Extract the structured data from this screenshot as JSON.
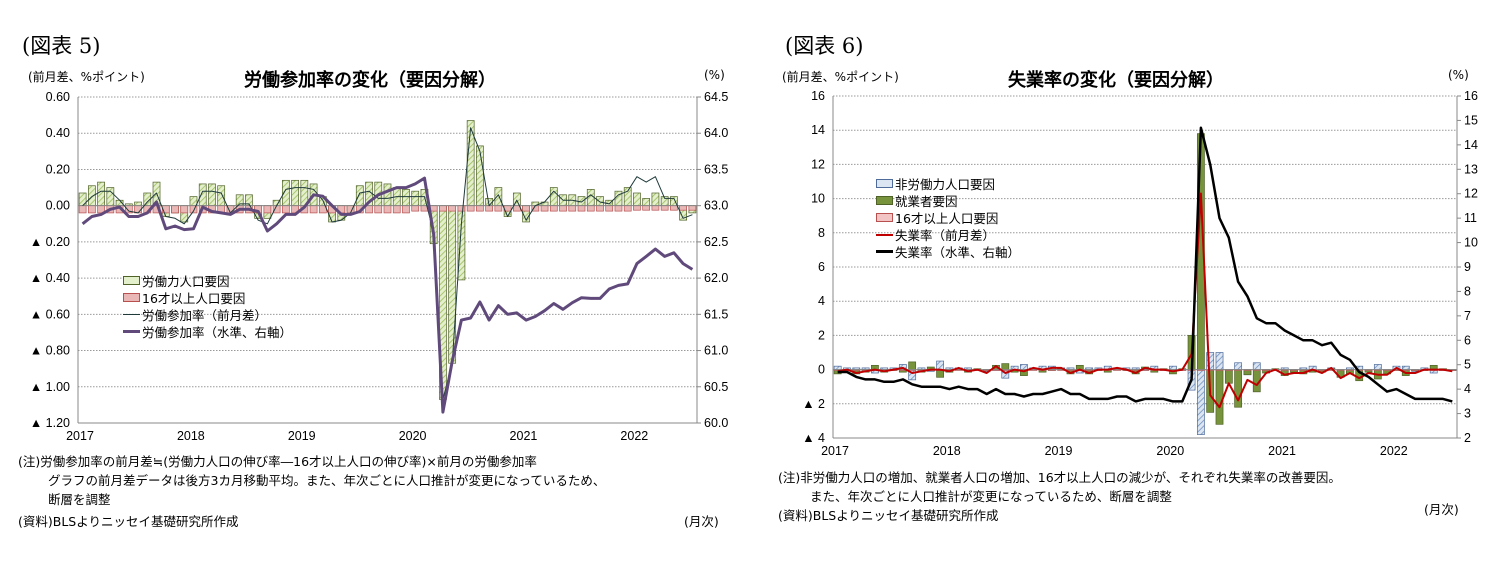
{
  "chart_data": [
    {
      "type": "bar",
      "figure_label": "(図表 5)",
      "title": "労働参加率の変化（要因分解）",
      "ylabel": "(前月差、%ポイント)",
      "ylabel_right": "(%)",
      "xlabel": "(月次)",
      "ylim": [
        -1.2,
        0.6
      ],
      "ylim_right": [
        60.0,
        64.5
      ],
      "yticks": [
        0.6,
        0.4,
        0.2,
        0,
        -0.2,
        -0.4,
        -0.6,
        -0.8,
        -1.0,
        -1.2
      ],
      "ytick_labels": [
        "0.60",
        "0.40",
        "0.20",
        "0.00",
        "▲ 0.20",
        "▲ 0.40",
        "▲ 0.60",
        "▲ 0.80",
        "▲ 1.00",
        "▲ 1.20"
      ],
      "yticks_right": [
        64.5,
        64.0,
        63.5,
        63.0,
        62.5,
        62.0,
        61.5,
        61.0,
        60.5,
        60.0
      ],
      "ytick_labels_right": [
        "64.5",
        "64.0",
        "63.5",
        "63.0",
        "62.5",
        "62.0",
        "61.5",
        "61.0",
        "60.5",
        "60.0"
      ],
      "x_start": "2017-01",
      "x_tick_labels": [
        "2017",
        "2018",
        "2019",
        "2020",
        "2021",
        "2022"
      ],
      "legend_placement": "center-left",
      "series": [
        {
          "name": "労働力人口要因",
          "kind": "bar",
          "values": [
            0.07,
            0.11,
            0.13,
            0.1,
            0.03,
            0.01,
            0.02,
            0.07,
            0.13,
            -0.06,
            -0.04,
            -0.09,
            0.05,
            0.12,
            0.12,
            0.11,
            0.0,
            0.06,
            0.06,
            -0.07,
            -0.07,
            0.03,
            0.14,
            0.14,
            0.14,
            0.12,
            0.05,
            -0.09,
            -0.08,
            -0.03,
            0.11,
            0.13,
            0.13,
            0.12,
            0.1,
            0.09,
            0.08,
            0.09,
            -0.21,
            -1.07,
            -0.87,
            -0.41,
            0.47,
            0.33,
            0.04,
            0.1,
            -0.06,
            0.07,
            -0.09,
            0.02,
            0.02,
            0.1,
            0.06,
            0.06,
            0.05,
            0.09,
            0.05,
            0.03,
            0.08,
            0.1,
            0.07,
            0.04,
            0.07,
            0.05,
            0.05,
            -0.08,
            -0.04
          ]
        },
        {
          "name": "16才以上人口要因",
          "kind": "bar",
          "values": [
            -0.04,
            -0.04,
            -0.04,
            -0.04,
            -0.04,
            -0.04,
            -0.04,
            -0.04,
            -0.04,
            -0.04,
            -0.04,
            -0.04,
            -0.04,
            -0.04,
            -0.04,
            -0.04,
            -0.04,
            -0.04,
            -0.04,
            -0.04,
            -0.04,
            -0.04,
            -0.04,
            -0.04,
            -0.04,
            -0.04,
            -0.04,
            -0.04,
            -0.04,
            -0.04,
            -0.04,
            -0.04,
            -0.04,
            -0.04,
            -0.04,
            -0.04,
            -0.03,
            -0.03,
            -0.03,
            -0.03,
            -0.03,
            -0.03,
            -0.03,
            -0.03,
            -0.03,
            -0.03,
            -0.03,
            -0.03,
            -0.03,
            -0.03,
            -0.03,
            -0.03,
            -0.03,
            -0.03,
            -0.03,
            -0.03,
            -0.03,
            -0.03,
            -0.03,
            -0.03,
            -0.025,
            -0.025,
            -0.025,
            -0.025,
            -0.025,
            -0.025,
            -0.025
          ]
        },
        {
          "name": "労働参加率（前月差）",
          "kind": "line",
          "values": [
            0.0,
            0.05,
            0.08,
            0.08,
            0.03,
            -0.03,
            -0.04,
            0.02,
            0.07,
            -0.06,
            -0.07,
            -0.1,
            -0.03,
            0.08,
            0.08,
            0.07,
            -0.04,
            0.01,
            0.01,
            -0.08,
            -0.1,
            0.0,
            0.09,
            0.1,
            0.1,
            0.09,
            0.03,
            -0.09,
            -0.08,
            -0.04,
            0.07,
            0.08,
            0.04,
            0.04,
            0.05,
            0.05,
            0.05,
            0.05,
            -0.15,
            -1.07,
            -0.87,
            -0.1,
            0.43,
            0.3,
            0.0,
            0.06,
            -0.06,
            0.03,
            -0.08,
            0.0,
            0.02,
            0.08,
            0.03,
            0.03,
            0.02,
            0.06,
            0.02,
            0.01,
            0.06,
            0.08,
            0.16,
            0.13,
            0.16,
            0.04,
            0.04,
            -0.07,
            -0.05
          ]
        },
        {
          "name": "労働参加率（水準、右軸）",
          "kind": "line",
          "axis": "right",
          "values": [
            62.75,
            62.85,
            62.88,
            62.95,
            62.98,
            62.85,
            62.85,
            62.9,
            63.05,
            62.68,
            62.72,
            62.67,
            62.68,
            62.98,
            62.92,
            62.9,
            62.88,
            62.95,
            62.95,
            62.92,
            62.65,
            62.75,
            62.88,
            62.88,
            62.98,
            63.15,
            63.13,
            63.0,
            62.88,
            62.88,
            62.92,
            63.05,
            63.15,
            63.2,
            63.25,
            63.25,
            63.3,
            63.38,
            62.6,
            60.15,
            60.85,
            61.42,
            61.45,
            61.67,
            61.42,
            61.62,
            61.5,
            61.52,
            61.42,
            61.47,
            61.55,
            61.65,
            61.57,
            61.66,
            61.73,
            61.72,
            61.72,
            61.85,
            61.9,
            61.92,
            62.2,
            62.3,
            62.4,
            62.3,
            62.35,
            62.2,
            62.12
          ]
        }
      ],
      "notes": [
        "(注)労働参加率の前月差≒(労働力人口の伸び率―16才以上人口の伸び率)×前月の労働参加率",
        "グラフの前月差データは後方3カ月移動平均。また、年次ごとに人口推計が変更になっているため、",
        "断層を調整",
        "(資料)BLSよりニッセイ基礎研究所作成"
      ]
    },
    {
      "type": "bar",
      "figure_label": "(図表 6)",
      "title": "失業率の変化（要因分解）",
      "ylabel": "(前月差、%ポイント)",
      "ylabel_right": "(%)",
      "xlabel": "(月次)",
      "ylim": [
        -4,
        16
      ],
      "ylim_right": [
        2,
        16
      ],
      "yticks": [
        16,
        14,
        12,
        10,
        8,
        6,
        4,
        2,
        0,
        -2,
        -4
      ],
      "ytick_labels": [
        "16",
        "14",
        "12",
        "10",
        "8",
        "6",
        "4",
        "2",
        "0",
        "▲ 2",
        "▲ 4"
      ],
      "yticks_right": [
        16,
        15,
        14,
        13,
        12,
        11,
        10,
        9,
        8,
        7,
        6,
        5,
        4,
        3,
        2
      ],
      "ytick_labels_right": [
        "16",
        "15",
        "14",
        "13",
        "12",
        "11",
        "10",
        "9",
        "8",
        "7",
        "6",
        "5",
        "4",
        "3",
        "2"
      ],
      "x_start": "2017-01",
      "x_tick_labels": [
        "2017",
        "2018",
        "2019",
        "2020",
        "2021",
        "2022"
      ],
      "legend_placement": "upper-left",
      "series": [
        {
          "name": "非労働力人口要因",
          "kind": "bar",
          "values": [
            0.2,
            0.1,
            0.1,
            0.1,
            -0.2,
            0.1,
            0.1,
            0.3,
            -0.6,
            0.1,
            -0.1,
            0.5,
            0.1,
            0.1,
            0.1,
            0.0,
            -0.1,
            0.0,
            -0.5,
            0.2,
            0.3,
            0.1,
            0.2,
            0.2,
            0.1,
            0.1,
            -0.2,
            0.1,
            0.1,
            0.2,
            0.1,
            0.1,
            0.1,
            0.0,
            0.2,
            0.0,
            0.2,
            0.0,
            -1.2,
            -3.8,
            1.0,
            1.0,
            0.0,
            0.4,
            -0.3,
            0.4,
            0.0,
            0.0,
            0.1,
            0.0,
            0.1,
            0.2,
            0.0,
            0.1,
            0.0,
            0.1,
            0.2,
            0.0,
            0.3,
            0.0,
            0.2,
            0.2,
            -0.1,
            0.1,
            -0.2,
            0.0,
            0.0
          ]
        },
        {
          "name": "就業者要因",
          "kind": "bar",
          "values": [
            -0.25,
            -0.05,
            -0.25,
            -0.15,
            0.25,
            -0.15,
            -0.05,
            -0.15,
            0.45,
            -0.15,
            0.15,
            -0.45,
            -0.15,
            0.05,
            -0.15,
            0.05,
            -0.05,
            0.25,
            0.35,
            -0.15,
            -0.35,
            0.05,
            -0.15,
            -0.05,
            0.05,
            -0.25,
            0.25,
            -0.25,
            -0.05,
            -0.15,
            0.05,
            -0.05,
            -0.25,
            0.15,
            -0.15,
            0.05,
            -0.25,
            0.05,
            2.0,
            13.8,
            -2.5,
            -3.2,
            -0.8,
            -2.2,
            -0.3,
            -1.3,
            -0.2,
            0.05,
            -0.35,
            -0.15,
            -0.25,
            -0.15,
            -0.15,
            0.05,
            -0.45,
            -0.25,
            -0.65,
            -0.15,
            -0.55,
            -0.25,
            -0.05,
            -0.35,
            -0.05,
            -0.05,
            0.25,
            0.05,
            -0.05
          ]
        },
        {
          "name": "16才以上人口要因",
          "kind": "bar",
          "values": [
            -0.05,
            -0.05,
            -0.05,
            -0.05,
            -0.05,
            -0.05,
            -0.05,
            -0.05,
            -0.05,
            -0.05,
            -0.05,
            -0.05,
            -0.05,
            -0.05,
            -0.05,
            -0.05,
            -0.05,
            -0.05,
            -0.05,
            -0.05,
            -0.05,
            -0.05,
            -0.05,
            -0.05,
            -0.05,
            -0.05,
            -0.05,
            -0.05,
            -0.05,
            -0.05,
            -0.05,
            -0.05,
            -0.05,
            -0.05,
            -0.05,
            -0.05,
            -0.05,
            -0.05,
            -0.05,
            -0.05,
            -0.05,
            -0.05,
            -0.05,
            -0.05,
            -0.05,
            -0.05,
            -0.05,
            -0.05,
            -0.05,
            -0.05,
            -0.05,
            -0.05,
            -0.05,
            -0.05,
            -0.05,
            -0.05,
            -0.05,
            -0.05,
            -0.05,
            -0.05,
            -0.05,
            -0.05,
            -0.05,
            -0.05,
            -0.05,
            -0.05,
            -0.05
          ]
        },
        {
          "name": "失業率（前月差）",
          "kind": "line",
          "values": [
            -0.1,
            0.0,
            -0.2,
            -0.1,
            0.0,
            -0.1,
            0.0,
            0.1,
            -0.2,
            -0.1,
            0.0,
            0.0,
            -0.1,
            0.1,
            -0.1,
            0.0,
            -0.2,
            0.2,
            -0.2,
            0.0,
            -0.1,
            0.1,
            0.0,
            0.1,
            0.1,
            -0.2,
            0.0,
            -0.2,
            0.0,
            0.0,
            0.1,
            0.0,
            -0.2,
            0.1,
            0.0,
            0.0,
            -0.1,
            0.0,
            0.9,
            10.3,
            -1.5,
            -2.2,
            -0.8,
            -1.8,
            -0.6,
            -0.9,
            -0.2,
            0.0,
            -0.3,
            -0.2,
            -0.2,
            0.0,
            -0.2,
            0.1,
            -0.5,
            -0.2,
            -0.5,
            -0.2,
            -0.3,
            -0.3,
            0.1,
            -0.2,
            -0.2,
            0.0,
            0.0,
            0.0,
            -0.1
          ]
        },
        {
          "name": "失業率（水準、右軸）",
          "kind": "line",
          "axis": "right",
          "values": [
            4.7,
            4.7,
            4.5,
            4.4,
            4.4,
            4.3,
            4.3,
            4.4,
            4.2,
            4.1,
            4.1,
            4.1,
            4.0,
            4.1,
            4.0,
            4.0,
            3.8,
            4.0,
            3.8,
            3.8,
            3.7,
            3.8,
            3.8,
            3.9,
            4.0,
            3.8,
            3.8,
            3.6,
            3.6,
            3.6,
            3.7,
            3.7,
            3.5,
            3.6,
            3.6,
            3.6,
            3.5,
            3.5,
            4.4,
            14.7,
            13.2,
            11.0,
            10.2,
            8.4,
            7.8,
            6.9,
            6.7,
            6.7,
            6.4,
            6.2,
            6.0,
            6.0,
            5.8,
            5.9,
            5.4,
            5.2,
            4.7,
            4.5,
            4.2,
            3.9,
            4.0,
            3.8,
            3.6,
            3.6,
            3.6,
            3.6,
            3.5
          ]
        }
      ],
      "notes": [
        "(注)非労働力人口の増加、就業者人口の増加、16才以上人口の減少が、それぞれ失業率の改善要因。",
        "また、年次ごとに人口推計が変更になっているため、断層を調整",
        "(資料)BLSよりニッセイ基礎研究所作成"
      ]
    }
  ]
}
